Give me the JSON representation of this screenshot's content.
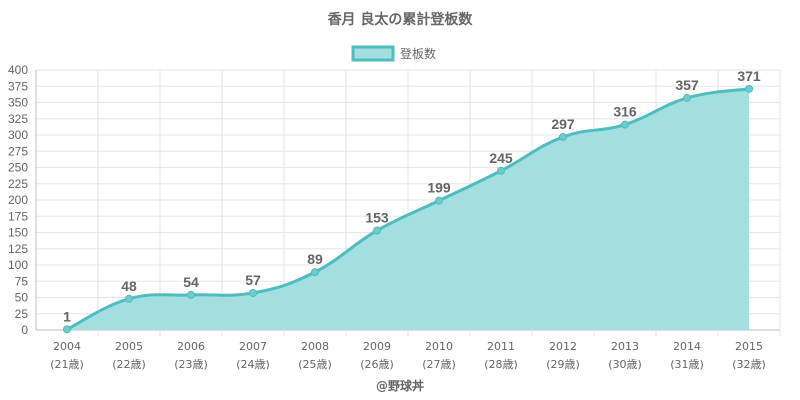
{
  "chart_data": {
    "type": "area",
    "title": "香月 良太の累計登板数",
    "legend": {
      "label": "登板数",
      "position": "top"
    },
    "categories": [
      "2004",
      "2005",
      "2006",
      "2007",
      "2008",
      "2009",
      "2010",
      "2011",
      "2012",
      "2013",
      "2014",
      "2015"
    ],
    "sublabels": [
      "(21歳)",
      "(22歳)",
      "(23歳)",
      "(24歳)",
      "(25歳)",
      "(26歳)",
      "(27歳)",
      "(28歳)",
      "(29歳)",
      "(30歳)",
      "(31歳)",
      "(32歳)"
    ],
    "series": [
      {
        "name": "登板数",
        "values": [
          1,
          48,
          54,
          57,
          89,
          153,
          199,
          245,
          297,
          316,
          357,
          371
        ]
      }
    ],
    "ylim": [
      0,
      400
    ],
    "ytick_step": 25,
    "grid": true,
    "colors": {
      "line": "#4dbdbd",
      "fill": "#a3dfdf",
      "point": "#6fcaca",
      "grid": "#e6e6e6",
      "text": "#666666"
    }
  },
  "footer": "@野球丼"
}
